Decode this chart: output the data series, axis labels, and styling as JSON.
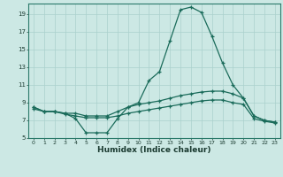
{
  "xlabel": "Humidex (Indice chaleur)",
  "bg_color": "#cce8e4",
  "grid_color": "#aad0cc",
  "line_color": "#1a6b5a",
  "xlim": [
    -0.5,
    23.5
  ],
  "ylim": [
    5,
    20.2
  ],
  "yticks": [
    5,
    7,
    9,
    11,
    13,
    15,
    17,
    19
  ],
  "xticks": [
    0,
    1,
    2,
    3,
    4,
    5,
    6,
    7,
    8,
    9,
    10,
    11,
    12,
    13,
    14,
    15,
    16,
    17,
    18,
    19,
    20,
    21,
    22,
    23
  ],
  "line1_x": [
    0,
    1,
    2,
    3,
    4,
    5,
    6,
    7,
    8,
    9,
    10,
    11,
    12,
    13,
    14,
    15,
    16,
    17,
    18,
    19,
    20,
    21,
    22,
    23
  ],
  "line1_y": [
    8.5,
    8.0,
    8.0,
    7.8,
    7.2,
    5.6,
    5.6,
    5.6,
    7.2,
    8.5,
    9.0,
    11.5,
    12.5,
    16.0,
    19.5,
    19.8,
    19.2,
    16.5,
    13.5,
    11.0,
    9.5,
    7.5,
    7.0,
    6.8
  ],
  "line2_x": [
    0,
    1,
    2,
    3,
    4,
    5,
    6,
    7,
    8,
    9,
    10,
    11,
    12,
    13,
    14,
    15,
    16,
    17,
    18,
    19,
    20,
    21,
    22,
    23
  ],
  "line2_y": [
    8.5,
    8.0,
    8.0,
    7.8,
    7.8,
    7.5,
    7.5,
    7.5,
    8.0,
    8.5,
    8.8,
    9.0,
    9.2,
    9.5,
    9.8,
    10.0,
    10.2,
    10.3,
    10.3,
    10.0,
    9.5,
    7.5,
    7.0,
    6.8
  ],
  "line3_x": [
    0,
    1,
    2,
    3,
    4,
    5,
    6,
    7,
    8,
    9,
    10,
    11,
    12,
    13,
    14,
    15,
    16,
    17,
    18,
    19,
    20,
    21,
    22,
    23
  ],
  "line3_y": [
    8.3,
    8.0,
    8.0,
    7.7,
    7.5,
    7.3,
    7.3,
    7.3,
    7.5,
    7.8,
    8.0,
    8.2,
    8.4,
    8.6,
    8.8,
    9.0,
    9.2,
    9.3,
    9.3,
    9.0,
    8.8,
    7.2,
    6.9,
    6.7
  ]
}
